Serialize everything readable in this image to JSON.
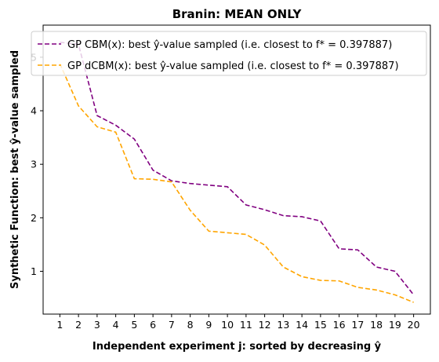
{
  "chart_data": {
    "type": "line",
    "title": "Branin: MEAN ONLY",
    "xlabel": "Independent experiment j: sorted by decreasing ŷ",
    "ylabel": "Synthetic Function: best ŷ-value sampled",
    "x": [
      1,
      2,
      3,
      4,
      5,
      6,
      7,
      8,
      9,
      10,
      11,
      12,
      13,
      14,
      15,
      16,
      17,
      18,
      19,
      20
    ],
    "xticks": [
      "1",
      "2",
      "3",
      "4",
      "5",
      "6",
      "7",
      "8",
      "9",
      "10",
      "11",
      "12",
      "13",
      "14",
      "15",
      "16",
      "17",
      "18",
      "19",
      "20"
    ],
    "yticks": [
      "1",
      "2",
      "3",
      "4",
      "5"
    ],
    "xlim": [
      0.1,
      20.9
    ],
    "ylim": [
      0.2,
      5.6
    ],
    "grid": false,
    "legend_position": "top",
    "series": [
      {
        "name": "GP CBM(x):   best ŷ-value sampled (i.e. closest to f* = 0.397887)",
        "color": "#800080",
        "linestyle": "dashed",
        "values": [
          5.28,
          5.24,
          3.91,
          3.73,
          3.47,
          2.89,
          2.69,
          2.64,
          2.61,
          2.58,
          2.24,
          2.15,
          2.04,
          2.02,
          1.94,
          1.42,
          1.4,
          1.08,
          1.0,
          0.56
        ]
      },
      {
        "name": "GP dCBM(x): best ŷ-value sampled (i.e. closest to f* = 0.397887)",
        "color": "#FFA500",
        "linestyle": "dashed",
        "values": [
          4.88,
          4.09,
          3.7,
          3.6,
          2.73,
          2.72,
          2.67,
          2.14,
          1.75,
          1.72,
          1.69,
          1.49,
          1.08,
          0.9,
          0.83,
          0.82,
          0.7,
          0.65,
          0.56,
          0.42
        ]
      }
    ]
  }
}
